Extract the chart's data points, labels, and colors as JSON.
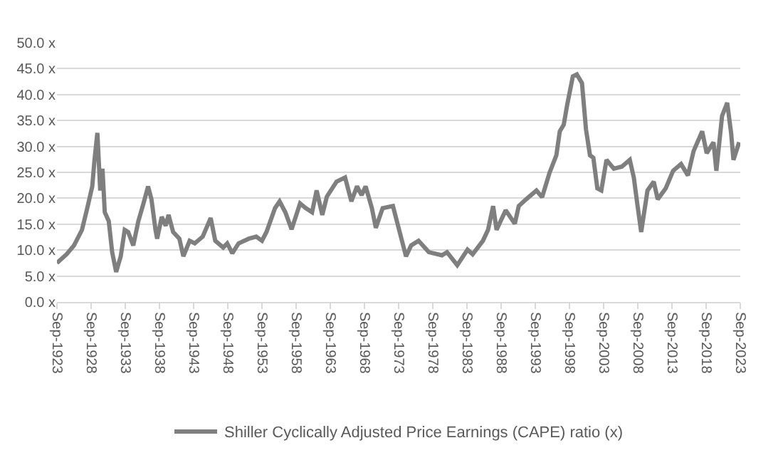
{
  "chart_data": {
    "type": "line",
    "x": [
      "1923-09",
      "1925-02",
      "1926-03",
      "1927-05",
      "1928-02",
      "1928-11",
      "1929-03",
      "1929-08",
      "1930-01",
      "1930-05",
      "1930-09",
      "1931-04",
      "1931-10",
      "1932-05",
      "1933-01",
      "1933-08",
      "1934-02",
      "1934-11",
      "1935-08",
      "1936-05",
      "1937-01",
      "1937-07",
      "1938-02",
      "1938-05",
      "1939-01",
      "1939-08",
      "1940-01",
      "1940-09",
      "1941-08",
      "1942-03",
      "1943-02",
      "1943-11",
      "1945-01",
      "1946-03",
      "1946-11",
      "1948-01",
      "1948-08",
      "1949-05",
      "1950-04",
      "1951-10",
      "1952-11",
      "1953-09",
      "1954-05",
      "1955-08",
      "1956-04",
      "1957-02",
      "1958-01",
      "1959-04",
      "1960-02",
      "1961-01",
      "1961-09",
      "1962-07",
      "1963-03",
      "1964-08",
      "1965-11",
      "1966-10",
      "1967-08",
      "1968-04",
      "1968-11",
      "1969-10",
      "1970-05",
      "1971-05",
      "1972-11",
      "1973-08",
      "1974-10",
      "1975-07",
      "1976-08",
      "1978-02",
      "1980-01",
      "1980-10",
      "1982-04",
      "1983-10",
      "1984-07",
      "1986-01",
      "1986-10",
      "1987-07",
      "1988-01",
      "1989-05",
      "1990-09",
      "1991-04",
      "1992-05",
      "1993-11",
      "1994-09",
      "1995-10",
      "1996-10",
      "1997-04",
      "1997-11",
      "1998-05",
      "1999-03",
      "1999-10",
      "2000-07",
      "2001-02",
      "2001-09",
      "2002-03",
      "2002-10",
      "2003-05",
      "2004-02",
      "2005-03",
      "2006-05",
      "2007-07",
      "2008-02",
      "2008-08",
      "2009-03",
      "2010-02",
      "2011-01",
      "2011-08",
      "2012-10",
      "2013-11",
      "2015-01",
      "2016-01",
      "2016-11",
      "2018-02",
      "2018-10",
      "2019-10",
      "2020-03",
      "2021-01",
      "2021-10",
      "2022-05",
      "2022-09",
      "2023-07"
    ],
    "series": [
      {
        "name": "Shiller Cyclically Adjusted Price Earnings (CAPE) ratio (x)",
        "color": "#7f7f7f",
        "values": [
          7.5,
          9.2,
          10.9,
          13.9,
          18,
          22.3,
          27.4,
          32.6,
          21.5,
          25.7,
          17.3,
          15.6,
          9.6,
          5.8,
          8.8,
          13.9,
          13.5,
          10.9,
          15.6,
          19,
          22.3,
          19.8,
          13.9,
          12.2,
          16.4,
          14.7,
          16.8,
          13.5,
          12.2,
          8.8,
          11.8,
          11.3,
          12.6,
          16.2,
          11.8,
          10.5,
          11.3,
          9.4,
          11.3,
          12.2,
          12.6,
          11.8,
          13.5,
          18.1,
          19.4,
          17.3,
          14,
          19,
          18.1,
          17.3,
          21.5,
          16.8,
          20.3,
          23.2,
          24,
          19.4,
          22.3,
          20.6,
          22.3,
          18.1,
          14.3,
          18.1,
          18.5,
          14.7,
          8.8,
          10.9,
          11.8,
          9.6,
          9,
          9.6,
          7.1,
          10.1,
          9.2,
          11.8,
          13.9,
          18.5,
          13.9,
          17.7,
          15.1,
          18.5,
          19.8,
          21.5,
          20.2,
          24.9,
          28.3,
          32.9,
          34.2,
          38,
          43.5,
          43.9,
          42.2,
          33.3,
          28.3,
          27.8,
          21.9,
          21.5,
          27.4,
          25.7,
          26.1,
          27.4,
          24,
          19,
          13.5,
          21.5,
          23.2,
          19.8,
          21.9,
          25.3,
          26.6,
          24.4,
          29.1,
          32.9,
          28.7,
          30.8,
          25.3,
          35.9,
          38.4,
          32.5,
          27.4,
          30.8
        ]
      }
    ],
    "xlim": [
      "1923-09",
      "2023-09"
    ],
    "xticks": [
      {
        "value": "1923-09",
        "label": "Sep-1923"
      },
      {
        "value": "1928-09",
        "label": "Sep-1928"
      },
      {
        "value": "1933-09",
        "label": "Sep-1933"
      },
      {
        "value": "1938-09",
        "label": "Sep-1938"
      },
      {
        "value": "1943-09",
        "label": "Sep-1943"
      },
      {
        "value": "1948-09",
        "label": "Sep-1948"
      },
      {
        "value": "1953-09",
        "label": "Sep-1953"
      },
      {
        "value": "1958-09",
        "label": "Sep-1958"
      },
      {
        "value": "1963-09",
        "label": "Sep-1963"
      },
      {
        "value": "1968-09",
        "label": "Sep-1968"
      },
      {
        "value": "1973-09",
        "label": "Sep-1973"
      },
      {
        "value": "1978-09",
        "label": "Sep-1978"
      },
      {
        "value": "1983-09",
        "label": "Sep-1983"
      },
      {
        "value": "1988-09",
        "label": "Sep-1988"
      },
      {
        "value": "1993-09",
        "label": "Sep-1993"
      },
      {
        "value": "1998-09",
        "label": "Sep-1998"
      },
      {
        "value": "2003-09",
        "label": "Sep-2003"
      },
      {
        "value": "2008-09",
        "label": "Sep-2008"
      },
      {
        "value": "2013-09",
        "label": "Sep-2013"
      },
      {
        "value": "2018-09",
        "label": "Sep-2018"
      },
      {
        "value": "2023-09",
        "label": "Sep-2023"
      }
    ],
    "ylim": [
      0,
      50
    ],
    "yticks": [
      {
        "value": 0,
        "label": "0.0 x"
      },
      {
        "value": 5,
        "label": "5.0 x"
      },
      {
        "value": 10,
        "label": "10.0 x"
      },
      {
        "value": 15,
        "label": "15.0 x"
      },
      {
        "value": 20,
        "label": "20.0 x"
      },
      {
        "value": 25,
        "label": "25.0 x"
      },
      {
        "value": 30,
        "label": "30.0 x"
      },
      {
        "value": 35,
        "label": "35.0 x"
      },
      {
        "value": 40,
        "label": "40.0 x"
      },
      {
        "value": 45,
        "label": "45.0 x"
      },
      {
        "value": 50,
        "label": "50.0 x"
      }
    ],
    "grid": "y",
    "legend": "bottom",
    "line_style": "solid",
    "marker": "none"
  }
}
